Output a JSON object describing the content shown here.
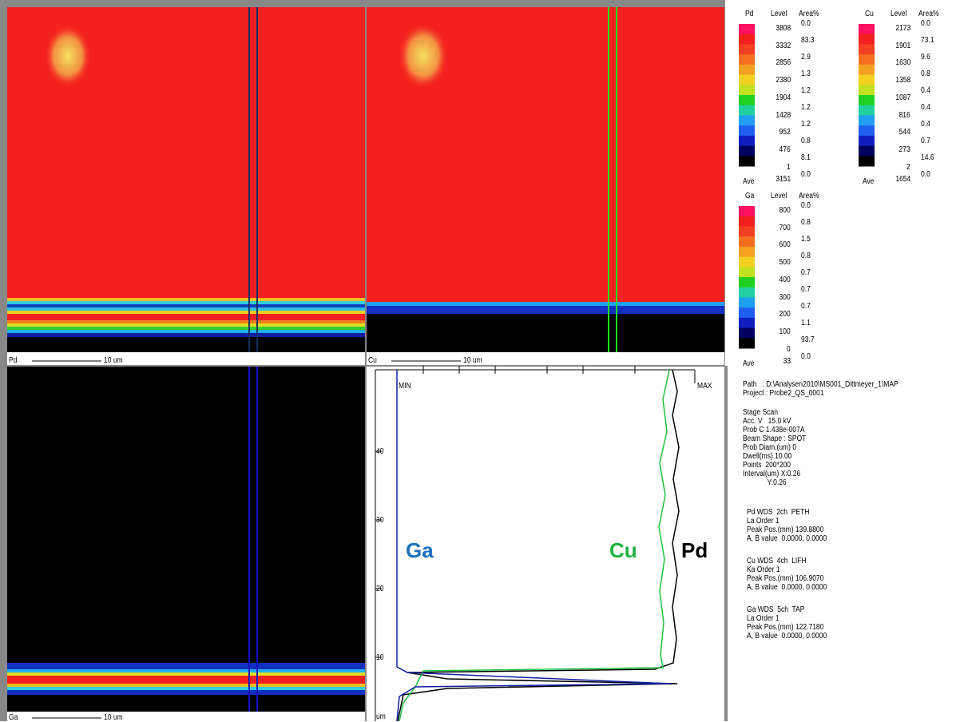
{
  "maps": [
    {
      "label": "Pd",
      "scale": "10 um"
    },
    {
      "label": "Cu",
      "scale": "10 um"
    },
    {
      "label": "Ga",
      "scale": "10 um"
    }
  ],
  "legends": [
    {
      "element": "Pd",
      "level_header": "Level",
      "area_header": "Area%",
      "levels": [
        "3808",
        "3332",
        "2856",
        "2380",
        "1904",
        "1428",
        "952",
        "476",
        "1"
      ],
      "areas": [
        "0.0",
        "83.3",
        "2.9",
        "1.3",
        "1.2",
        "1.2",
        "1.2",
        "0.8",
        "8.1",
        "0.0"
      ],
      "ave_label": "Ave",
      "ave": "3151"
    },
    {
      "element": "Cu",
      "level_header": "Level",
      "area_header": "Area%",
      "levels": [
        "2173",
        "1901",
        "1630",
        "1358",
        "1087",
        "816",
        "544",
        "273",
        "2"
      ],
      "areas": [
        "0.0",
        "73.1",
        "9.6",
        "0.8",
        "0.4",
        "0.4",
        "0.4",
        "0.7",
        "14.6",
        "0.0"
      ],
      "ave_label": "Ave",
      "ave": "1654"
    },
    {
      "element": "Ga",
      "level_header": "Level",
      "area_header": "Area%",
      "levels": [
        "800",
        "700",
        "600",
        "500",
        "400",
        "300",
        "200",
        "100",
        "0"
      ],
      "areas": [
        "0.0",
        "0.8",
        "1.5",
        "0.8",
        "0.7",
        "0.7",
        "0.7",
        "1.1",
        "93.7",
        "0.0"
      ],
      "ave_label": "Ave",
      "ave": "33"
    }
  ],
  "profile": {
    "min": "MIN",
    "max": "MAX",
    "unit": "um",
    "ticks": [
      "40",
      "30",
      "20",
      "10"
    ],
    "labels": [
      "Ga",
      "Cu",
      "Pd"
    ]
  },
  "info": {
    "groups": [
      [
        "Path   : D:\\Analysen2010\\MS001_Dittmeyer_1\\MAP",
        "Project : Probe2_QS_0001"
      ],
      [
        "Stage Scan",
        "Acc. V   15.0 kV",
        "Prob C 1.438e-007A",
        "Beam Shape : SPOT",
        "Prob Diam.(um) 0",
        "Dwell(ms) 10.00",
        "Points  200*200",
        "Interval(um) X:0.26",
        "             Y:0.26"
      ],
      [
        "Pd WDS  2ch  PETH",
        "La Order 1",
        "Peak Pos.(mm) 139.8800",
        "A, B value  0.0000, 0.0000"
      ],
      [
        "Cu WDS  4ch  LIFH",
        "Ka Order 1",
        "Peak Pos.(mm) 106.9070",
        "A, B value  0.0000, 0.0000"
      ],
      [
        "Ga WDS  5ch  TAP",
        "La Order 1",
        "Peak Pos.(mm) 122.7180",
        "A, B value  0.0000, 0.0000"
      ]
    ]
  }
}
